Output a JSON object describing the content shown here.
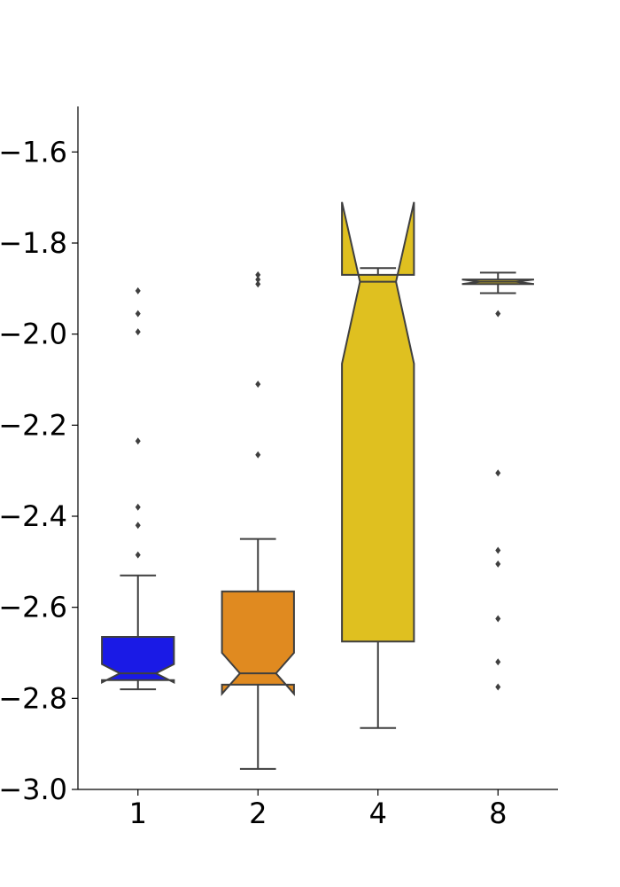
{
  "chart_data": {
    "type": "boxplot",
    "notched": true,
    "title": "",
    "xlabel": "",
    "ylabel": "",
    "categories": [
      "1",
      "2",
      "4",
      "8"
    ],
    "ylim": [
      -3.0,
      -1.5
    ],
    "yticks": [
      "-3.0",
      "-2.8",
      "-2.6",
      "-2.4",
      "-2.2",
      "-2.0",
      "-1.8",
      "-1.6"
    ],
    "ytick_values": [
      -3.0,
      -2.8,
      -2.6,
      -2.4,
      -2.2,
      -2.0,
      -1.8,
      -1.6
    ],
    "grid": false,
    "boxes": [
      {
        "category": "1",
        "color": "#1a1ae6",
        "q1": -2.76,
        "median": -2.745,
        "q3": -2.665,
        "notch_low": -2.765,
        "notch_high": -2.725,
        "whisker_low": -2.78,
        "whisker_high": -2.53,
        "outliers": [
          -1.905,
          -1.955,
          -1.995,
          -2.235,
          -2.38,
          -2.42,
          -2.485
        ]
      },
      {
        "category": "2",
        "color": "#e08a20",
        "q1": -2.77,
        "median": -2.745,
        "q3": -2.565,
        "notch_low": -2.79,
        "notch_high": -2.7,
        "whisker_low": -2.955,
        "whisker_high": -2.45,
        "outliers": [
          -1.87,
          -1.88,
          -1.89,
          -2.11,
          -2.265
        ]
      },
      {
        "category": "4",
        "color": "#dfc020",
        "q1": -2.675,
        "median": -1.885,
        "q3": -1.87,
        "notch_low": -2.065,
        "notch_high": -1.71,
        "whisker_low": -2.865,
        "whisker_high": -1.855,
        "outliers": []
      },
      {
        "category": "8",
        "color": "#dfc020",
        "q1": -1.89,
        "median": -1.885,
        "q3": -1.88,
        "notch_low": -1.89,
        "notch_high": -1.88,
        "whisker_low": -1.91,
        "whisker_high": -1.865,
        "outliers": [
          -1.955,
          -2.305,
          -2.475,
          -2.505,
          -2.625,
          -2.72,
          -2.775
        ]
      }
    ]
  }
}
